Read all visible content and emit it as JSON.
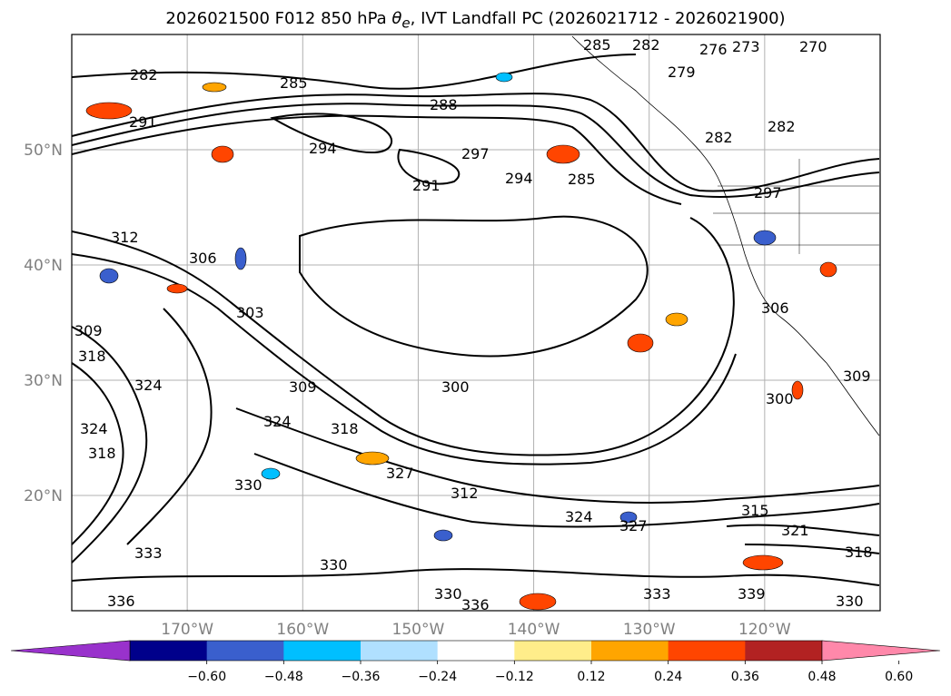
{
  "title": {
    "prefix": "2026021500 F012 850 hPa ",
    "symbol": "θ",
    "subscript": "e",
    "suffix": ", IVT Landfall PC (2026021712 - 2026021900)"
  },
  "map": {
    "projection": "PlateCarree",
    "extent": {
      "lon": [
        -180,
        -110
      ],
      "lat": [
        10,
        60
      ]
    },
    "gridlines": true,
    "lat_labels": [
      {
        "lat": 50,
        "text": "50°N"
      },
      {
        "lat": 40,
        "text": "40°N"
      },
      {
        "lat": 30,
        "text": "30°N"
      },
      {
        "lat": 20,
        "text": "20°N"
      }
    ],
    "lon_labels": [
      {
        "lon": -170,
        "text": "170°W"
      },
      {
        "lon": -160,
        "text": "160°W"
      },
      {
        "lon": -150,
        "text": "150°W"
      },
      {
        "lon": -140,
        "text": "140°W"
      },
      {
        "lon": -130,
        "text": "130°W"
      },
      {
        "lon": -120,
        "text": "120°W"
      }
    ],
    "contour_labels": [
      "282",
      "285",
      "288",
      "291",
      "294",
      "297",
      "294",
      "285",
      "291",
      "282",
      "285",
      "273",
      "270",
      "276",
      "279",
      "282",
      "282",
      "297",
      "312",
      "306",
      "303",
      "309",
      "318",
      "324",
      "309",
      "300",
      "306",
      "300",
      "309",
      "324",
      "318",
      "324",
      "318",
      "327",
      "330",
      "312",
      "324",
      "327",
      "315",
      "321",
      "318",
      "330",
      "333",
      "336",
      "330",
      "333",
      "339",
      "336",
      "330"
    ]
  },
  "colorbar": {
    "ticks": [
      "−0.60",
      "−0.48",
      "−0.36",
      "−0.24",
      "−0.12",
      "0.12",
      "0.24",
      "0.36",
      "0.48",
      "0.60"
    ],
    "under_color": "#9932cc",
    "over_color": "#ff88aa",
    "colors": [
      "#00008b",
      "#3a5fcd",
      "#00bfff",
      "#b0e0ff",
      "#ffffff",
      "#ffed8a",
      "#ffa500",
      "#ff4500",
      "#b22222"
    ]
  }
}
